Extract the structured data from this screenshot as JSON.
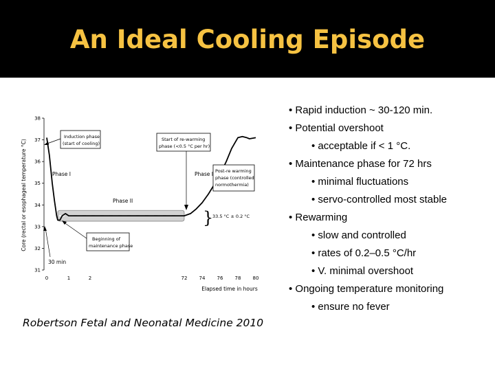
{
  "title": "An Ideal Cooling Episode",
  "colors": {
    "title_bar": "#000000",
    "title_text": "#f6c242",
    "band_fill": "#d2d2d2",
    "curve": "#000000"
  },
  "bullets": [
    {
      "level": 1,
      "text": "• Rapid induction ~ 30-120 min."
    },
    {
      "level": 1,
      "text": "• Potential overshoot"
    },
    {
      "level": 2,
      "text": "• acceptable if < 1 °C."
    },
    {
      "level": 1,
      "text": "• Maintenance phase for 72 hrs"
    },
    {
      "level": 2,
      "text": "• minimal fluctuations"
    },
    {
      "level": 2,
      "text": "• servo-controlled most stable"
    },
    {
      "level": 1,
      "text": "• Rewarming"
    },
    {
      "level": 2,
      "text": "• slow and controlled"
    },
    {
      "level": 2,
      "text": "• rates of 0.2–0.5 °C/hr"
    },
    {
      "level": 2,
      "text": "• V. minimal overshoot"
    },
    {
      "level": 1,
      "text": "• Ongoing temperature monitoring"
    },
    {
      "level": 2,
      "text": "• ensure no fever"
    }
  ],
  "citation": "Robertson Fetal and Neonatal Medicine 2010",
  "chart_data": {
    "type": "line",
    "xlabel": "Elapsed time in hours",
    "ylabel": "Core (rectal or esophageal temperature °C)",
    "x_ticks": [
      "0",
      "1",
      "2",
      "72",
      "74",
      "76",
      "78",
      "80"
    ],
    "y_ticks": [
      "31",
      "32",
      "33",
      "34",
      "35",
      "36",
      "37",
      "38"
    ],
    "ylim": [
      31,
      38
    ],
    "x_scale": "broken axis: 0–2 hours then 72–80 hours",
    "series": [
      {
        "x": [
          0,
          0.12,
          0.25,
          0.35,
          0.45,
          0.5,
          0.6,
          0.7,
          0.85,
          1.0,
          1.5,
          2.0,
          72,
          72.7,
          73.3,
          74,
          74.7,
          75.3,
          76,
          76.7,
          77.3,
          78,
          78.5,
          79,
          79.3,
          80
        ],
        "y": [
          37.1,
          36.3,
          35.0,
          34.2,
          33.5,
          33.3,
          33.3,
          33.5,
          33.6,
          33.5,
          33.5,
          33.5,
          33.5,
          33.6,
          33.8,
          34.1,
          34.5,
          34.9,
          35.4,
          36.0,
          36.6,
          37.1,
          37.15,
          37.1,
          37.05,
          37.1
        ]
      }
    ],
    "band": {
      "label": "33.5 °C ± 0.2 °C",
      "y_center": 33.5,
      "x_range": [
        "0.5",
        "72"
      ]
    },
    "phases": [
      "Phase I",
      "Phase II",
      "Phase III"
    ],
    "annotations": [
      "Induction phase (start of cooling)",
      "Start of re-warming phase (<0.5 °C per hr)",
      "Post-re warming phase (controlled normothermia)",
      "Beginning of maintenance phase",
      "30 min"
    ]
  }
}
